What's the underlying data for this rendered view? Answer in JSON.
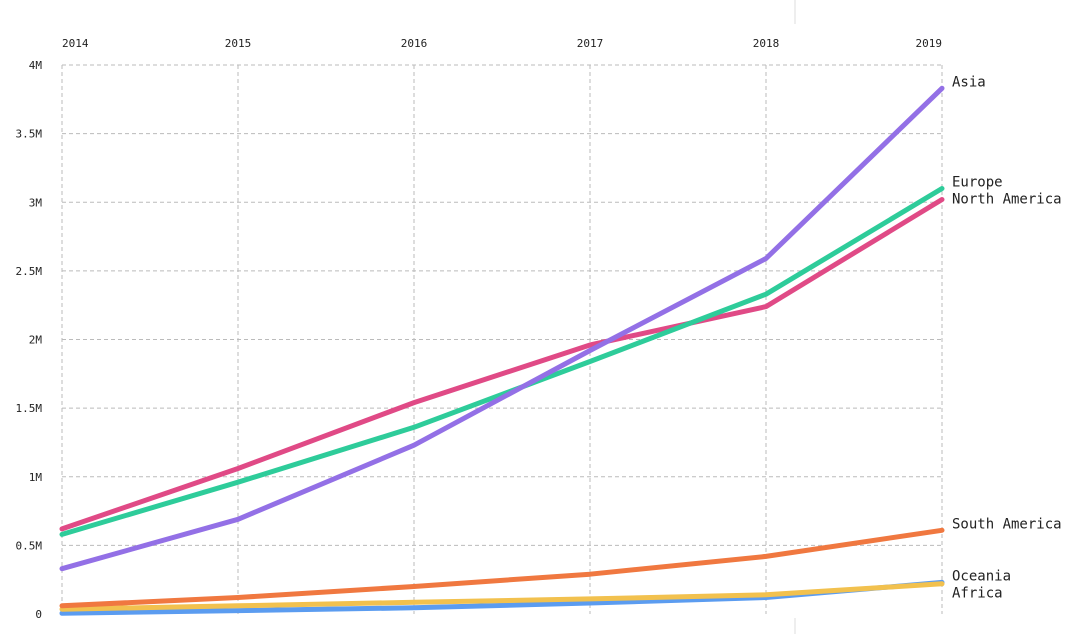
{
  "chart_data": {
    "type": "line",
    "x": [
      2014,
      2015,
      2016,
      2017,
      2018,
      2019
    ],
    "x_tick_labels": [
      "2014",
      "2015",
      "2016",
      "2017",
      "2018",
      "2019"
    ],
    "y_ticks": [
      0,
      500000,
      1000000,
      1500000,
      2000000,
      2500000,
      3000000,
      3500000,
      4000000
    ],
    "y_tick_labels": [
      "0",
      "0.5M",
      "1M",
      "1.5M",
      "2M",
      "2.5M",
      "3M",
      "3.5M",
      "4M"
    ],
    "ylim": [
      0,
      4000000
    ],
    "xaxis_position": "top",
    "grid": true,
    "title": "",
    "xlabel": "",
    "ylabel": "",
    "legend": "inline-right",
    "series": [
      {
        "name": "Asia",
        "color": "#9370e6",
        "values": [
          330000,
          690000,
          1230000,
          1920000,
          2590000,
          3830000
        ]
      },
      {
        "name": "Europe",
        "color": "#2ecc9a",
        "values": [
          580000,
          960000,
          1360000,
          1840000,
          2330000,
          3100000
        ]
      },
      {
        "name": "North America",
        "color": "#e04a86",
        "values": [
          620000,
          1060000,
          1540000,
          1960000,
          2240000,
          3020000
        ]
      },
      {
        "name": "South America",
        "color": "#f07840",
        "values": [
          60000,
          120000,
          200000,
          290000,
          420000,
          610000
        ]
      },
      {
        "name": "Africa",
        "color": "#f2c14e",
        "values": [
          35000,
          60000,
          85000,
          110000,
          140000,
          220000
        ]
      },
      {
        "name": "Oceania",
        "color": "#5b9cf0",
        "values": [
          5000,
          25000,
          45000,
          80000,
          120000,
          230000
        ]
      }
    ]
  }
}
